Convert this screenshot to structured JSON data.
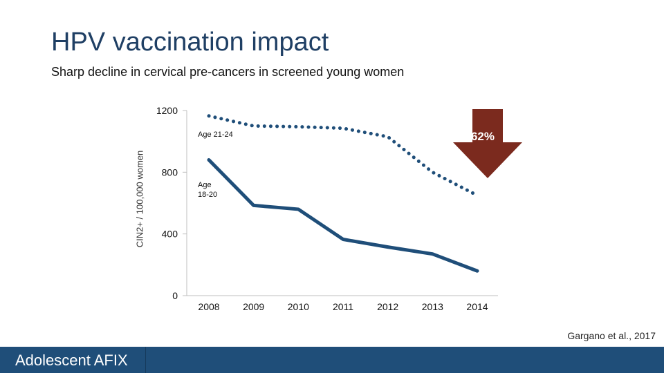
{
  "slide": {
    "title": "HPV vaccination impact",
    "subtitle": "Sharp decline in cervical pre-cancers in screened young women",
    "citation": "Gargano et al., 2017",
    "footer_label": "Adolescent AFIX"
  },
  "colors": {
    "title": "#1f3f64",
    "series_line": "#1f4e79",
    "arrow": "#7b2a1e",
    "footer": "#1f4e79"
  },
  "chart_data": {
    "type": "line",
    "title": "",
    "xlabel": "",
    "ylabel": "CIN2+ / 100,000 women",
    "x": [
      "2008",
      "2009",
      "2010",
      "2011",
      "2012",
      "2013",
      "2014"
    ],
    "ylim": [
      0,
      1200
    ],
    "yticks": [
      "0",
      "400",
      "800",
      "1200"
    ],
    "series": [
      {
        "name": "Age 21-24",
        "style": "dotted",
        "values": [
          1165,
          1100,
          1095,
          1085,
          1030,
          800,
          650
        ]
      },
      {
        "name": "Age 18-20",
        "style": "solid",
        "values": [
          880,
          585,
          560,
          365,
          315,
          270,
          160
        ]
      }
    ],
    "annotations": {
      "age_21_24": "Age 21-24",
      "age_18_20_line1": "Age",
      "age_18_20_line2": "18-20",
      "decline_pct": "62%"
    }
  }
}
